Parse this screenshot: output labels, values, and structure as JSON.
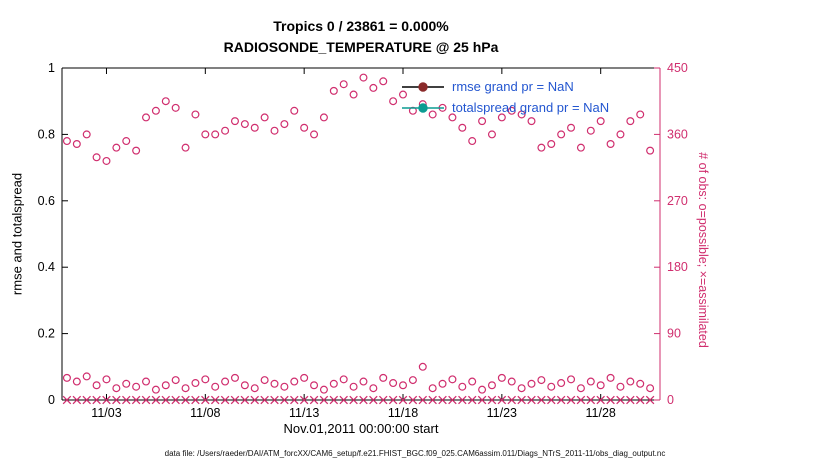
{
  "figure": {
    "footer": "data file: /Users/raeder/DAI/ATM_forcXX/CAM6_setup/f.e21.FHIST_BGC.f09_025.CAM6assim.011/Diags_NTrS_2011-11/obs_diag_output.nc"
  },
  "colors": {
    "axis": "#000000",
    "obs": "#d02e6e",
    "legend_text": "#2356d0"
  },
  "chart_data": {
    "type": "scatter",
    "suptitle": "Tropics 0 / 23861 = 0.000%",
    "title": "RADIOSONDE_TEMPERATURE @ 25 hPa",
    "xlabel": "Nov.01,2011 00:00:00 start",
    "ylabel_left": "rmse and totalspread",
    "ylabel_right": "# of obs: o=possible; ×=assimilated",
    "grid": false,
    "legend_position": "upper-center-right",
    "xlim": [
      0.75,
      31
    ],
    "ylim_left": [
      0,
      1
    ],
    "ylim_right": [
      0,
      450
    ],
    "x_ticks": [
      3,
      8,
      13,
      18,
      23,
      28
    ],
    "x_tick_labels": [
      "11/03",
      "11/08",
      "11/13",
      "11/18",
      "11/23",
      "11/28"
    ],
    "yticks_left": [
      0,
      0.2,
      0.4,
      0.6,
      0.8,
      1
    ],
    "ytick_labels_left": [
      "0",
      "0.2",
      "0.4",
      "0.6",
      "0.8",
      "1"
    ],
    "yticks_right": [
      0,
      90,
      180,
      270,
      360,
      450
    ],
    "ytick_labels_right": [
      "0",
      "90",
      "180",
      "270",
      "360",
      "450"
    ],
    "x_days": [
      1,
      1.5,
      2,
      2.5,
      3,
      3.5,
      4,
      4.5,
      5,
      5.5,
      6,
      6.5,
      7,
      7.5,
      8,
      8.5,
      9,
      9.5,
      10,
      10.5,
      11,
      11.5,
      12,
      12.5,
      13,
      13.5,
      14,
      14.5,
      15,
      15.5,
      16,
      16.5,
      17,
      17.5,
      18,
      18.5,
      19,
      19.5,
      20,
      20.5,
      21,
      21.5,
      22,
      22.5,
      23,
      23.5,
      24,
      24.5,
      25,
      25.5,
      26,
      26.5,
      27,
      27.5,
      28,
      28.5,
      29,
      29.5,
      30,
      30.5
    ],
    "series": [
      {
        "name": "possible-obs-upper",
        "axis": "right",
        "marker": "o",
        "values": [
          351,
          347,
          360,
          329,
          324,
          342,
          351,
          338,
          383,
          392,
          405,
          396,
          342,
          387,
          360,
          360,
          365,
          378,
          374,
          369,
          383,
          365,
          374,
          392,
          369,
          360,
          383,
          419,
          428,
          414,
          437,
          423,
          432,
          405,
          414,
          392,
          401,
          387,
          396,
          383,
          369,
          351,
          378,
          360,
          383,
          392,
          387,
          378,
          342,
          347,
          360,
          369,
          342,
          365,
          378,
          347,
          360,
          378,
          387,
          338
        ]
      },
      {
        "name": "possible-obs-lower",
        "axis": "right",
        "marker": "o",
        "values": [
          30,
          25,
          32,
          20,
          28,
          16,
          22,
          18,
          25,
          14,
          20,
          27,
          16,
          23,
          28,
          18,
          25,
          30,
          20,
          16,
          27,
          22,
          18,
          25,
          30,
          20,
          14,
          22,
          28,
          18,
          25,
          16,
          30,
          23,
          20,
          27,
          45,
          16,
          22,
          28,
          18,
          25,
          14,
          20,
          30,
          25,
          16,
          22,
          27,
          18,
          23,
          28,
          16,
          25,
          20,
          30,
          18,
          25,
          22,
          16
        ]
      },
      {
        "name": "assimilated-obs",
        "axis": "right",
        "marker": "x",
        "values": [
          0,
          0,
          0,
          0,
          0,
          0,
          0,
          0,
          0,
          0,
          0,
          0,
          0,
          0,
          0,
          0,
          0,
          0,
          0,
          0,
          0,
          0,
          0,
          0,
          0,
          0,
          0,
          0,
          0,
          0,
          0,
          0,
          0,
          0,
          0,
          0,
          0,
          0,
          0,
          0,
          0,
          0,
          0,
          0,
          0,
          0,
          0,
          0,
          0,
          0,
          0,
          0,
          0,
          0,
          0,
          0,
          0,
          0,
          0,
          0
        ]
      }
    ],
    "legend": [
      {
        "label": "rmse grand pr = NaN",
        "line_color": "#000000",
        "marker_color": "#8a2a2a"
      },
      {
        "label": "totalspread grand pr = NaN",
        "line_color": "#0c9c92",
        "marker_color": "#0c9c92"
      }
    ]
  }
}
